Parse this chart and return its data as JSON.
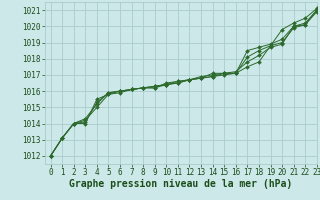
{
  "title": "Graphe pression niveau de la mer (hPa)",
  "bg_color": "#cce8e8",
  "grid_color": "#aacccc",
  "line_color": "#2d6a2d",
  "marker_color": "#2d6a2d",
  "xlim": [
    -0.5,
    23
  ],
  "ylim": [
    1011.5,
    1021.5
  ],
  "yticks": [
    1012,
    1013,
    1014,
    1015,
    1016,
    1017,
    1018,
    1019,
    1020,
    1021
  ],
  "xticks": [
    0,
    1,
    2,
    3,
    4,
    5,
    6,
    7,
    8,
    9,
    10,
    11,
    12,
    13,
    14,
    15,
    16,
    17,
    18,
    19,
    20,
    21,
    22,
    23
  ],
  "series": [
    [
      1012.0,
      1013.1,
      1014.0,
      1014.0,
      1015.5,
      1015.8,
      1015.9,
      1016.1,
      1016.2,
      1016.2,
      1016.5,
      1016.6,
      1016.7,
      1016.8,
      1017.1,
      1017.1,
      1017.1,
      1017.5,
      1017.8,
      1018.8,
      1019.8,
      1020.2,
      1020.5,
      1021.1
    ],
    [
      1012.0,
      1013.1,
      1014.0,
      1014.1,
      1015.3,
      1015.9,
      1016.0,
      1016.1,
      1016.2,
      1016.3,
      1016.4,
      1016.5,
      1016.7,
      1016.8,
      1016.9,
      1017.1,
      1017.1,
      1018.5,
      1018.7,
      1018.9,
      1019.2,
      1020.0,
      1020.2,
      1021.0
    ],
    [
      1012.0,
      1013.1,
      1014.0,
      1014.2,
      1015.0,
      1015.8,
      1016.0,
      1016.1,
      1016.2,
      1016.2,
      1016.4,
      1016.5,
      1016.7,
      1016.8,
      1016.9,
      1017.0,
      1017.1,
      1018.1,
      1018.5,
      1018.8,
      1019.0,
      1019.9,
      1020.1,
      1020.9
    ],
    [
      1012.0,
      1013.1,
      1014.0,
      1014.3,
      1015.2,
      1015.9,
      1016.0,
      1016.1,
      1016.2,
      1016.3,
      1016.4,
      1016.6,
      1016.7,
      1016.9,
      1017.0,
      1017.1,
      1017.2,
      1017.8,
      1018.2,
      1018.7,
      1018.9,
      1020.0,
      1020.1,
      1021.0
    ]
  ],
  "font_color": "#1a4d1a",
  "tick_fontsize": 5.5,
  "label_fontsize": 7.0,
  "monospace_font": "monospace"
}
